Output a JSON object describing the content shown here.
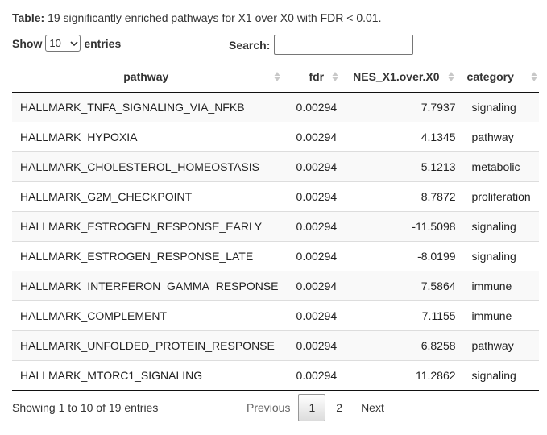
{
  "caption": {
    "label": "Table:",
    "text": "19 significantly enriched pathways for X1 over X0 with FDR < 0.01."
  },
  "length_menu": {
    "show_label": "Show",
    "selected": "10",
    "entries_label": "entries"
  },
  "search": {
    "label": "Search:",
    "value": "",
    "placeholder": ""
  },
  "table": {
    "columns": [
      "pathway",
      "fdr",
      "NES_X1.over.X0",
      "category"
    ],
    "rows": [
      [
        "HALLMARK_TNFA_SIGNALING_VIA_NFKB",
        "0.00294",
        "7.7937",
        "signaling"
      ],
      [
        "HALLMARK_HYPOXIA",
        "0.00294",
        "4.1345",
        "pathway"
      ],
      [
        "HALLMARK_CHOLESTEROL_HOMEOSTASIS",
        "0.00294",
        "5.1213",
        "metabolic"
      ],
      [
        "HALLMARK_G2M_CHECKPOINT",
        "0.00294",
        "8.7872",
        "proliferation"
      ],
      [
        "HALLMARK_ESTROGEN_RESPONSE_EARLY",
        "0.00294",
        "-11.5098",
        "signaling"
      ],
      [
        "HALLMARK_ESTROGEN_RESPONSE_LATE",
        "0.00294",
        "-8.0199",
        "signaling"
      ],
      [
        "HALLMARK_INTERFERON_GAMMA_RESPONSE",
        "0.00294",
        "7.5864",
        "immune"
      ],
      [
        "HALLMARK_COMPLEMENT",
        "0.00294",
        "7.1155",
        "immune"
      ],
      [
        "HALLMARK_UNFOLDED_PROTEIN_RESPONSE",
        "0.00294",
        "6.8258",
        "pathway"
      ],
      [
        "HALLMARK_MTORC1_SIGNALING",
        "0.00294",
        "11.2862",
        "signaling"
      ]
    ]
  },
  "info": "Showing 1 to 10 of 19 entries",
  "pagination": {
    "previous": "Previous",
    "pages": [
      "1",
      "2"
    ],
    "current": "1",
    "next": "Next"
  },
  "icons": {
    "sort": "sort-both-icon",
    "dropdown": "chevron-down-icon"
  },
  "colors": {
    "stripe": "#f9f9f9",
    "row_border": "#dddddd",
    "header_border": "#111111"
  }
}
